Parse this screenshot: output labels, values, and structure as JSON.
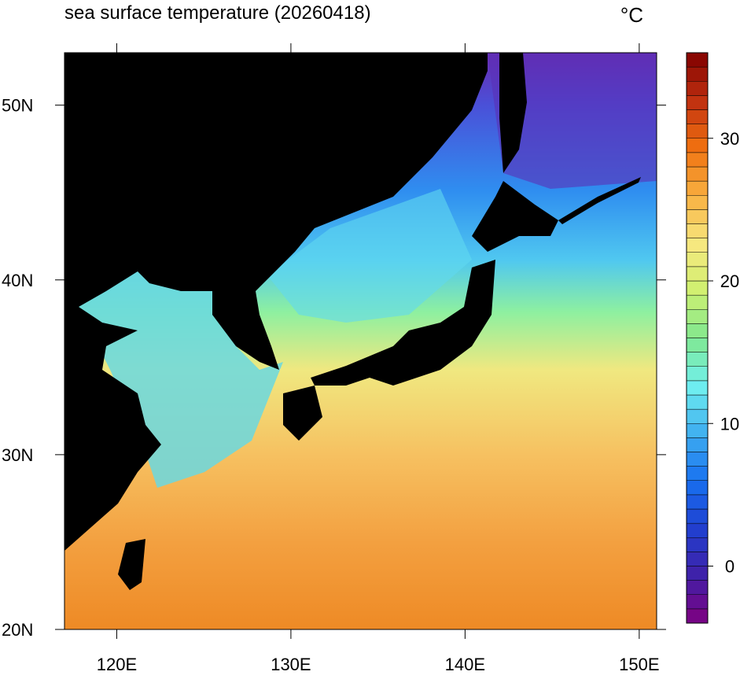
{
  "title": "sea surface temperature (20260418)",
  "unit": "°C",
  "xlim": [
    117,
    151
  ],
  "ylim": [
    20,
    53
  ],
  "lon_ticks": [
    {
      "value": 120,
      "label": "120E"
    },
    {
      "value": 130,
      "label": "130E"
    },
    {
      "value": 140,
      "label": "140E"
    },
    {
      "value": 150,
      "label": "150E"
    }
  ],
  "lat_ticks": [
    {
      "value": 20,
      "label": "20N"
    },
    {
      "value": 30,
      "label": "30N"
    },
    {
      "value": 40,
      "label": "40N"
    },
    {
      "value": 50,
      "label": "50N"
    }
  ],
  "colorbar": {
    "range": [
      -4,
      36
    ],
    "step": 1,
    "ticks": [
      0,
      10,
      20,
      30
    ],
    "colormap": [
      "#800080",
      "#4020a8",
      "#2040d0",
      "#1870f0",
      "#40b0f0",
      "#70f0f0",
      "#80e890",
      "#d0f070",
      "#f8e880",
      "#f8b040",
      "#f07010",
      "#c03010",
      "#800000"
    ]
  }
}
